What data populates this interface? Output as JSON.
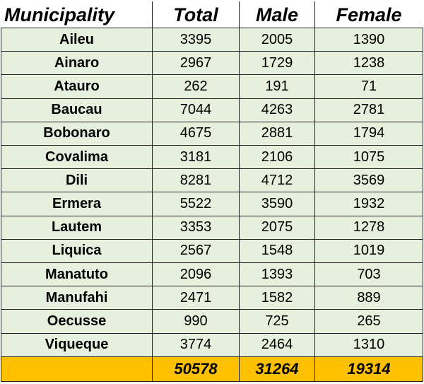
{
  "table": {
    "headers": [
      "Municipality",
      "Total",
      "Male",
      "Female"
    ],
    "rows": [
      {
        "municipality": "Aileu",
        "total": "3395",
        "male": "2005",
        "female": "1390"
      },
      {
        "municipality": "Ainaro",
        "total": "2967",
        "male": "1729",
        "female": "1238"
      },
      {
        "municipality": "Atauro",
        "total": "262",
        "male": "191",
        "female": "71"
      },
      {
        "municipality": "Baucau",
        "total": "7044",
        "male": "4263",
        "female": "2781"
      },
      {
        "municipality": "Bobonaro",
        "total": "4675",
        "male": "2881",
        "female": "1794"
      },
      {
        "municipality": "Covalima",
        "total": "3181",
        "male": "2106",
        "female": "1075"
      },
      {
        "municipality": "Dili",
        "total": "8281",
        "male": "4712",
        "female": "3569"
      },
      {
        "municipality": "Ermera",
        "total": "5522",
        "male": "3590",
        "female": "1932"
      },
      {
        "municipality": "Lautem",
        "total": "3353",
        "male": "2075",
        "female": "1278"
      },
      {
        "municipality": "Liquica",
        "total": "2567",
        "male": "1548",
        "female": "1019"
      },
      {
        "municipality": "Manatuto",
        "total": "2096",
        "male": "1393",
        "female": "703"
      },
      {
        "municipality": "Manufahi",
        "total": "2471",
        "male": "1582",
        "female": "889"
      },
      {
        "municipality": "Oecusse",
        "total": "990",
        "male": "725",
        "female": "265"
      },
      {
        "municipality": "Viqueque",
        "total": "3774",
        "male": "2464",
        "female": "1310"
      }
    ],
    "totals": {
      "label": "",
      "total": "50578",
      "male": "31264",
      "female": "19314"
    }
  },
  "colors": {
    "row_fill": "#e6f0dc",
    "totals_fill": "#ffc000",
    "header_fill": "#ffffff"
  }
}
